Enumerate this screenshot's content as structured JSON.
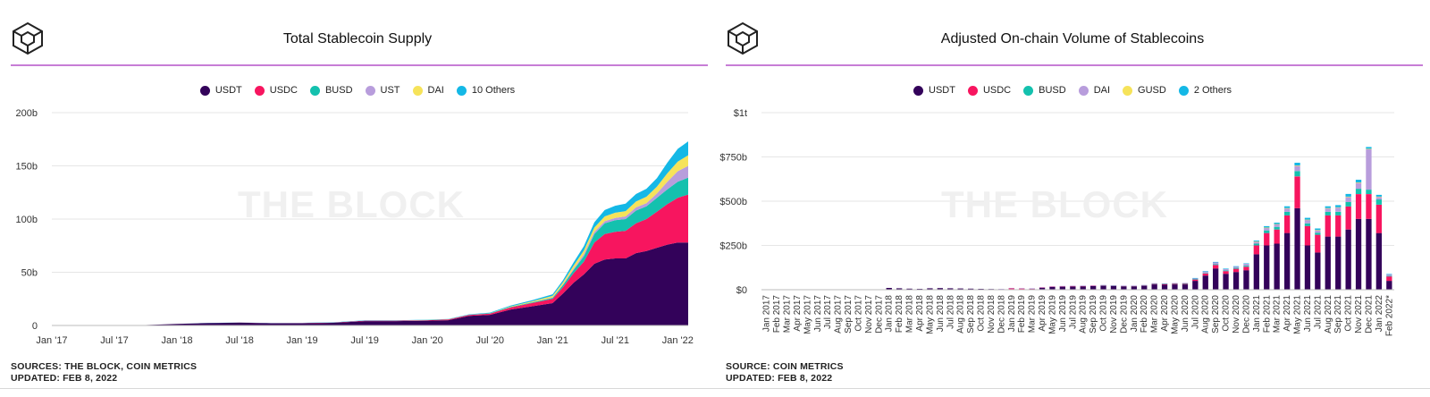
{
  "left_panel": {
    "title": "Total Stablecoin Supply",
    "source_line": "SOURCES: THE BLOCK, COIN METRICS",
    "updated_line": "UPDATED: FEB 8, 2022",
    "watermark": "THE BLOCK"
  },
  "right_panel": {
    "title": "Adjusted On-chain Volume of Stablecoins",
    "source_line": "SOURCE: COIN METRICS",
    "updated_line": "UPDATED: FEB 8, 2022",
    "watermark": "THE BLOCK"
  },
  "colors": {
    "USDT": "#33025a",
    "USDC": "#f7155f",
    "BUSD": "#14c1ae",
    "UST": "#b89ddc",
    "DAI_supply": "#f6e35a",
    "Others_supply": "#14b8e6",
    "DAI_volume": "#b89ddc",
    "GUSD": "#f6e35a",
    "Others_volume": "#14b8e6",
    "accent_rule": "#c77dd6"
  },
  "chart_data": [
    {
      "type": "area",
      "stacked": true,
      "title": "Total Stablecoin Supply",
      "xlabel": "",
      "ylabel": "",
      "ylim": [
        0,
        200
      ],
      "y_ticks": [
        "0",
        "50b",
        "100b",
        "150b",
        "200b"
      ],
      "x_tick_labels": [
        "Jan '17",
        "Jul '17",
        "Jan '18",
        "Jul '18",
        "Jan '19",
        "Jul '19",
        "Jan '20",
        "Jul '20",
        "Jan '21",
        "Jul '21",
        "Jan '22"
      ],
      "legend": [
        "USDT",
        "USDC",
        "BUSD",
        "UST",
        "DAI",
        "10 Others"
      ],
      "legend_position": "top-center",
      "grid": true,
      "x": [
        "2017-01",
        "2017-04",
        "2017-07",
        "2017-10",
        "2018-01",
        "2018-04",
        "2018-07",
        "2018-10",
        "2019-01",
        "2019-04",
        "2019-07",
        "2019-10",
        "2020-01",
        "2020-03",
        "2020-05",
        "2020-07",
        "2020-09",
        "2020-11",
        "2021-01",
        "2021-02",
        "2021-03",
        "2021-04",
        "2021-05",
        "2021-06",
        "2021-07",
        "2021-08",
        "2021-09",
        "2021-10",
        "2021-11",
        "2021-12",
        "2022-01",
        "2022-02"
      ],
      "series": [
        {
          "name": "USDT",
          "values": [
            0.01,
            0.05,
            0.1,
            0.4,
            1.4,
            2.3,
            2.7,
            2.0,
            2.0,
            2.5,
            4.1,
            4.1,
            4.5,
            5.0,
            9.0,
            10.0,
            15.0,
            18.0,
            21.0,
            30.0,
            40.0,
            48.0,
            58.0,
            62.0,
            63.0,
            63.0,
            68.0,
            70.0,
            73.0,
            76.0,
            78.0,
            78.0
          ]
        },
        {
          "name": "USDC",
          "values": [
            0,
            0,
            0,
            0,
            0,
            0,
            0,
            0.2,
            0.3,
            0.3,
            0.4,
            0.4,
            0.5,
            0.6,
            0.8,
            1.1,
            2.0,
            3.0,
            4.0,
            6.0,
            9.0,
            12.0,
            20.0,
            24.0,
            25.0,
            26.0,
            28.0,
            30.0,
            34.0,
            38.0,
            42.0,
            45.0
          ]
        },
        {
          "name": "BUSD",
          "values": [
            0,
            0,
            0,
            0,
            0,
            0,
            0,
            0,
            0.01,
            0.02,
            0.05,
            0.1,
            0.15,
            0.2,
            0.2,
            0.3,
            0.5,
            0.7,
            1.0,
            2.0,
            3.0,
            5.0,
            8.0,
            10.0,
            11.0,
            11.0,
            12.0,
            12.0,
            13.0,
            14.0,
            15.0,
            16.0
          ]
        },
        {
          "name": "UST",
          "values": [
            0,
            0,
            0,
            0,
            0,
            0,
            0,
            0,
            0,
            0,
            0,
            0,
            0,
            0,
            0,
            0,
            0.02,
            0.1,
            0.3,
            0.5,
            1.0,
            2.0,
            2.0,
            2.0,
            2.0,
            2.5,
            3.0,
            3.0,
            4.0,
            7.0,
            10.0,
            11.0
          ]
        },
        {
          "name": "DAI",
          "values": [
            0,
            0,
            0,
            0,
            0,
            0,
            0,
            0,
            0,
            0,
            0,
            0,
            0.05,
            0.05,
            0.1,
            0.2,
            0.5,
            0.8,
            1.5,
            2.0,
            3.0,
            3.5,
            4.0,
            4.5,
            5.0,
            5.0,
            5.5,
            6.0,
            6.5,
            8.0,
            9.0,
            10.0
          ]
        },
        {
          "name": "10 Others",
          "values": [
            0.02,
            0.02,
            0.03,
            0.05,
            0.05,
            0.1,
            0.1,
            0.2,
            0.2,
            0.2,
            0.2,
            0.2,
            0.3,
            0.3,
            0.4,
            0.5,
            0.8,
            1.0,
            1.5,
            2.0,
            3.0,
            4.0,
            5.0,
            6.0,
            6.5,
            7.0,
            7.0,
            7.5,
            8.0,
            10.0,
            12.0,
            13.0
          ]
        }
      ]
    },
    {
      "type": "bar",
      "stacked": true,
      "title": "Adjusted On-chain Volume of Stablecoins",
      "xlabel": "",
      "ylabel": "",
      "ylim": [
        0,
        1000
      ],
      "y_ticks": [
        "$0",
        "$250b",
        "$500b",
        "$750b",
        "$1t"
      ],
      "legend": [
        "USDT",
        "USDC",
        "BUSD",
        "DAI",
        "GUSD",
        "2 Others"
      ],
      "legend_position": "top-center",
      "grid": true,
      "categories": [
        "Jan 2017",
        "Feb 2017",
        "Mar 2017",
        "Apr 2017",
        "May 2017",
        "Jun 2017",
        "Jul 2017",
        "Aug 2017",
        "Sep 2017",
        "Oct 2017",
        "Nov 2017",
        "Dec 2017",
        "Jan 2018",
        "Feb 2018",
        "Mar 2018",
        "Apr 2018",
        "May 2018",
        "Jun 2018",
        "Jul 2018",
        "Aug 2018",
        "Sep 2018",
        "Oct 2018",
        "Nov 2018",
        "Dec 2018",
        "Jan 2019",
        "Feb 2019",
        "Mar 2019",
        "Apr 2019",
        "May 2019",
        "Jun 2019",
        "Jul 2019",
        "Aug 2019",
        "Sep 2019",
        "Oct 2019",
        "Nov 2019",
        "Dec 2019",
        "Jan 2020",
        "Feb 2020",
        "Mar 2020",
        "Apr 2020",
        "May 2020",
        "Jun 2020",
        "Jul 2020",
        "Aug 2020",
        "Sep 2020",
        "Oct 2020",
        "Nov 2020",
        "Dec 2020",
        "Jan 2021",
        "Feb 2021",
        "Mar 2021",
        "Apr 2021",
        "May 2021",
        "Jun 2021",
        "Jul 2021",
        "Aug 2021",
        "Sep 2021",
        "Oct 2021",
        "Nov 2021",
        "Dec 2021",
        "Jan 2022",
        "Feb 2022*"
      ],
      "series": [
        {
          "name": "USDT",
          "values": [
            0,
            0,
            0,
            0,
            0,
            0,
            0,
            0,
            0,
            0,
            1,
            2,
            10,
            8,
            6,
            5,
            8,
            9,
            8,
            7,
            6,
            5,
            4,
            3,
            3,
            3,
            4,
            10,
            15,
            17,
            18,
            19,
            20,
            22,
            20,
            18,
            18,
            22,
            30,
            28,
            30,
            30,
            50,
            80,
            120,
            90,
            100,
            110,
            200,
            250,
            260,
            320,
            460,
            250,
            210,
            300,
            300,
            340,
            400,
            400,
            320,
            50
          ]
        },
        {
          "name": "USDC",
          "values": [
            0,
            0,
            0,
            0,
            0,
            0,
            0,
            0,
            0,
            0,
            0,
            0,
            0,
            0,
            0,
            0,
            0,
            0,
            0,
            0,
            0,
            0,
            0,
            1,
            5,
            4,
            3,
            3,
            3,
            3,
            3,
            3,
            3,
            3,
            3,
            3,
            3,
            3,
            4,
            5,
            5,
            5,
            8,
            12,
            20,
            15,
            18,
            20,
            50,
            70,
            80,
            100,
            180,
            110,
            100,
            120,
            120,
            130,
            140,
            140,
            160,
            25
          ]
        },
        {
          "name": "BUSD",
          "values": [
            0,
            0,
            0,
            0,
            0,
            0,
            0,
            0,
            0,
            0,
            0,
            0,
            0,
            0,
            0,
            0,
            0,
            0,
            0,
            0,
            0,
            0,
            0,
            0,
            0,
            0,
            0,
            0,
            0,
            0,
            0,
            0,
            0,
            1,
            1,
            1,
            1,
            1,
            1,
            1,
            1,
            1,
            2,
            3,
            4,
            4,
            5,
            6,
            10,
            15,
            15,
            20,
            30,
            15,
            12,
            20,
            20,
            25,
            30,
            25,
            30,
            4
          ]
        },
        {
          "name": "DAI",
          "values": [
            0,
            0,
            0,
            0,
            0,
            0,
            0,
            0,
            0,
            0,
            0,
            0,
            0,
            0,
            0,
            0,
            0,
            0,
            0,
            0,
            0,
            0,
            0,
            1,
            2,
            2,
            1,
            1,
            1,
            1,
            1,
            1,
            1,
            1,
            1,
            1,
            1,
            1,
            2,
            2,
            2,
            3,
            5,
            8,
            10,
            8,
            8,
            10,
            12,
            15,
            15,
            20,
            30,
            20,
            15,
            20,
            25,
            30,
            35,
            230,
            15,
            8
          ]
        },
        {
          "name": "GUSD",
          "values": [
            0,
            0,
            0,
            0,
            0,
            0,
            0,
            0,
            0,
            0,
            0,
            0,
            0,
            0,
            0,
            0,
            0,
            0,
            0,
            0,
            0,
            0,
            0,
            0,
            0,
            0,
            0,
            0,
            0,
            0,
            0,
            0,
            0,
            0,
            0,
            0,
            0,
            0,
            0,
            0,
            0,
            0,
            0,
            0,
            0,
            0,
            0,
            0,
            1,
            1,
            1,
            1,
            2,
            1,
            1,
            1,
            1,
            1,
            1,
            1,
            1,
            0
          ]
        },
        {
          "name": "2 Others",
          "values": [
            0,
            0,
            0,
            0,
            0,
            0,
            0,
            0,
            0,
            0,
            0,
            0,
            0,
            0,
            0,
            0,
            0,
            0,
            0,
            0,
            0,
            0,
            0,
            0,
            0,
            0,
            0,
            0,
            0,
            0,
            0,
            0,
            0,
            0,
            0,
            0,
            0,
            0,
            0,
            0,
            0,
            0,
            1,
            2,
            3,
            2,
            2,
            3,
            5,
            8,
            8,
            10,
            15,
            10,
            8,
            10,
            12,
            15,
            15,
            10,
            10,
            2
          ]
        }
      ]
    }
  ]
}
